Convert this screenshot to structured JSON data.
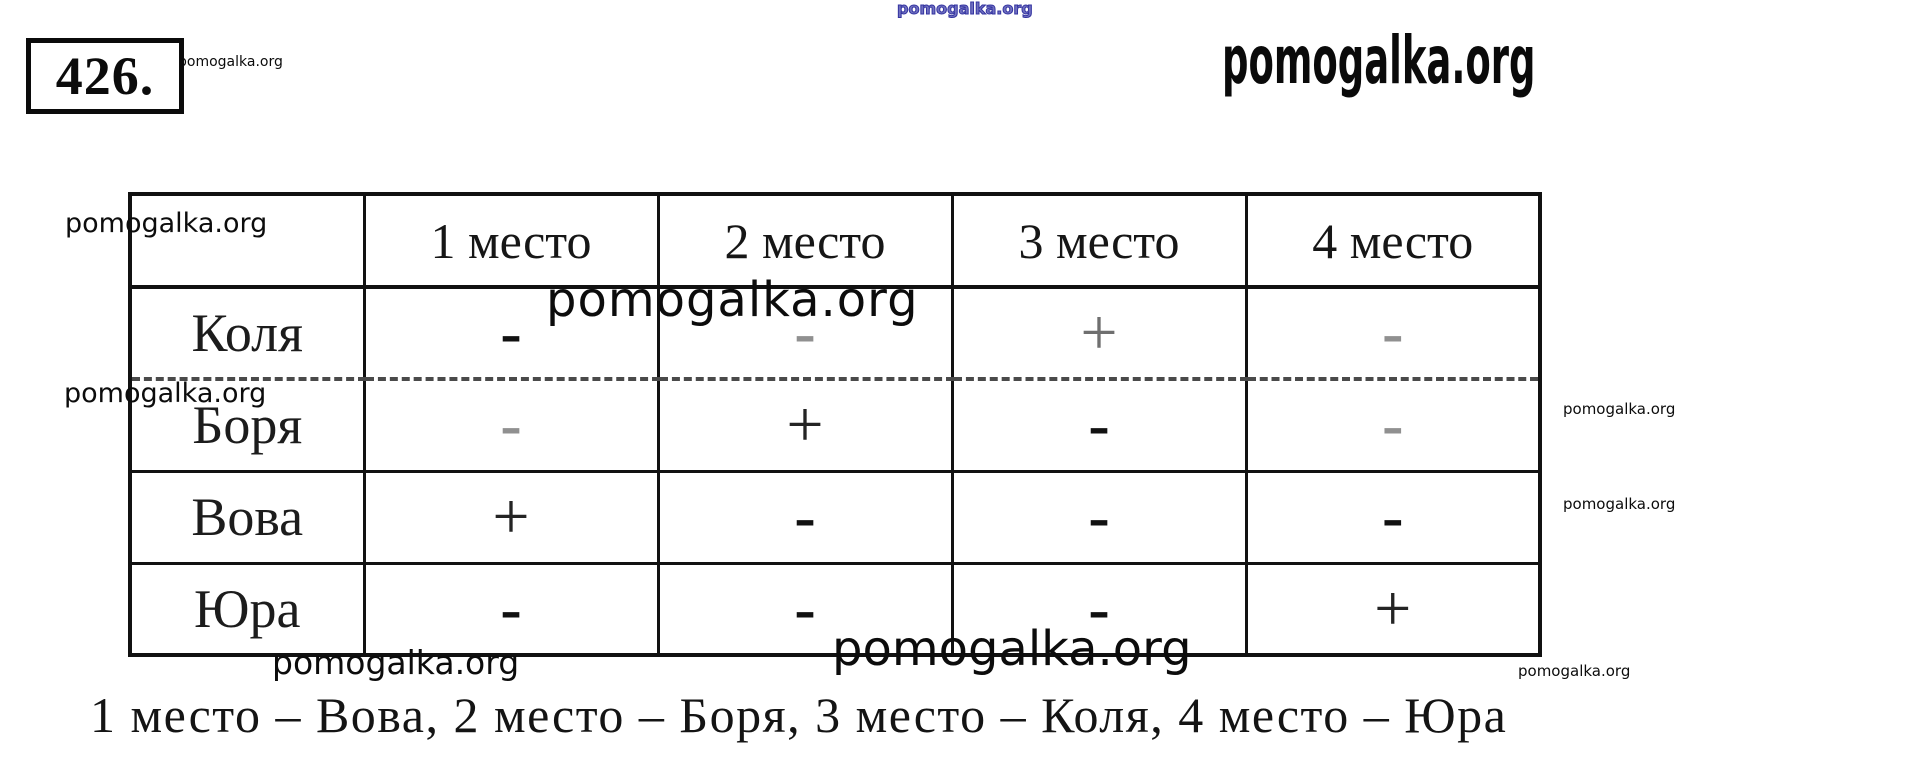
{
  "problem": {
    "number": "426."
  },
  "watermark": {
    "text": "pomogalka.org"
  },
  "table": {
    "col_headers": [
      "1 место",
      "2 место",
      "3 место",
      "4 место"
    ],
    "rows": [
      {
        "name": "Коля",
        "marks": [
          "-",
          "-",
          "+",
          "-"
        ]
      },
      {
        "name": "Боря",
        "marks": [
          "-",
          "+",
          "-",
          "-"
        ]
      },
      {
        "name": "Вова",
        "marks": [
          "+",
          "-",
          "-",
          "-"
        ]
      },
      {
        "name": "Юра",
        "marks": [
          "-",
          "-",
          "-",
          "+"
        ]
      }
    ]
  },
  "answer": {
    "text": "1 место – Вова, 2 место – Боря, 3 место – Коля, 4 место – Юра"
  },
  "colors": {
    "ink": "#121212",
    "muted_mark": "#909090",
    "blue_watermark": "#3333a0"
  }
}
